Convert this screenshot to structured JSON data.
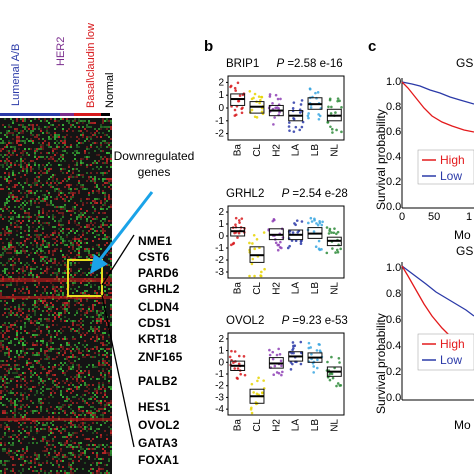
{
  "panel_a": {
    "subtype_labels": [
      "Lumenal A/B",
      "HER2",
      "Basal\\claudin low",
      "Normal"
    ],
    "subtype_colors": [
      "#2b3aa8",
      "#7b2d8e",
      "#d7191c",
      "#000000"
    ],
    "downregulated_label": "Downregulated genes",
    "genes": [
      "NME1",
      "CST6",
      "PARD6",
      "GRHL2",
      "CLDN4",
      "CDS1",
      "KRT18",
      "ZNF165",
      "PALB2",
      "HES1",
      "OVOL2",
      "GATA3",
      "FOXA1"
    ]
  },
  "panel_b": {
    "letter": "b",
    "x_categories": [
      "Ba",
      "CL",
      "H2",
      "LA",
      "LB",
      "NL"
    ],
    "category_colors": [
      "#d7191c",
      "#e6d400",
      "#8e3fb5",
      "#2b3aa8",
      "#3aa6e0",
      "#2e8b3a"
    ],
    "plots": [
      {
        "gene": "BRIP1",
        "p_label": "P",
        "p_value": " =2.58 e-16",
        "yticks": [
          "2",
          "1",
          "0",
          "-1",
          "-2"
        ],
        "medians": [
          0.7,
          0.1,
          -0.2,
          -0.6,
          0.3,
          -0.6
        ],
        "q1": [
          0.2,
          -0.4,
          -0.6,
          -1.0,
          -0.1,
          -1.0
        ],
        "q3": [
          1.1,
          0.5,
          0.2,
          -0.2,
          0.8,
          -0.1
        ]
      },
      {
        "gene": "GRHL2",
        "p_label": "P",
        "p_value": " =2.54 e-28",
        "yticks": [
          "2",
          "1",
          "0",
          "-1",
          "-2",
          "-3"
        ],
        "medians": [
          0.4,
          -1.6,
          0.1,
          0.1,
          0.2,
          -0.4
        ],
        "q1": [
          0.0,
          -2.2,
          -0.3,
          -0.3,
          -0.2,
          -0.8
        ],
        "q3": [
          0.7,
          -0.9,
          0.6,
          0.5,
          0.7,
          -0.1
        ]
      },
      {
        "gene": "OVOL2",
        "p_label": "P",
        "p_value": " =9.23 e-53",
        "yticks": [
          "2",
          "1",
          "0",
          "-1",
          "-2",
          "-3",
          "-4"
        ],
        "medians": [
          -0.3,
          -2.9,
          -0.1,
          0.5,
          0.4,
          -0.8
        ],
        "q1": [
          -0.7,
          -3.5,
          -0.5,
          0.1,
          0.0,
          -1.2
        ],
        "q3": [
          0.1,
          -2.3,
          0.4,
          0.9,
          0.8,
          -0.4
        ]
      }
    ]
  },
  "panel_c": {
    "letter": "c",
    "ylabel": "Survival probability",
    "yticks": [
      "1.0",
      "0.8",
      "0.6",
      "0.4",
      "0.2",
      "0.0"
    ],
    "xticks_top": [
      "0",
      "50",
      "1"
    ],
    "top_title": "GS",
    "bottom_title": "GS",
    "xlabel_partial": "Mo",
    "legend_high": "High",
    "legend_low": "Low",
    "legend_high_partial": "High",
    "legend_low_partial": "Low",
    "high_color": "#e31a1c",
    "low_color": "#2b3aa8"
  }
}
